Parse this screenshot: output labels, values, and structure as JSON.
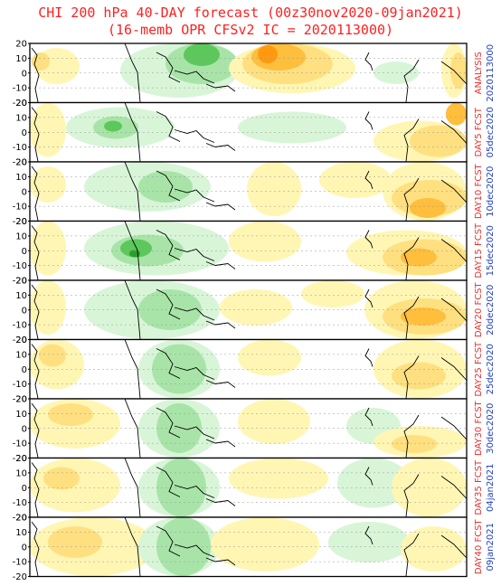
{
  "title_line1": "CHI 200 hPa 40-DAY forecast (00z30nov2020-09jan2021)",
  "title_line2": "(16-memb OPR CFSv2 IC = 2020113000)",
  "colors": {
    "green_light": "#d8f5d8",
    "green_mid": "#a8e4a8",
    "green_dark": "#5cc85c",
    "green_core": "#2aa02a",
    "yellow_light": "#fff6b4",
    "yellow_mid": "#ffe080",
    "orange": "#ffbe3c",
    "orange_dark": "#ff9a10",
    "label_red": "#e8302e",
    "label_blue": "#2040c0",
    "title_red": "#ff2020"
  },
  "chart_data": {
    "type": "heatmap",
    "variable": "CHI 200 hPa",
    "y_ticks": [
      20,
      10,
      0,
      -10,
      -20
    ],
    "ylim": [
      -20,
      20
    ],
    "grid": "dashed horizontal lines every 10 degrees",
    "panels": [
      {
        "label": "ANALYSIS",
        "date": "2020113000"
      },
      {
        "label": "DAY5 FCST",
        "date": "05dec2020"
      },
      {
        "label": "DAY10 FCST",
        "date": "10dec2020"
      },
      {
        "label": "DAY15 FCST",
        "date": "15dec2020"
      },
      {
        "label": "DAY20 FCST",
        "date": "20dec2020"
      },
      {
        "label": "DAY25 FCST",
        "date": "25dec2020"
      },
      {
        "label": "DAY30 FCST",
        "date": "30dec2020"
      },
      {
        "label": "DAY35 FCST",
        "date": "04jan2021"
      },
      {
        "label": "DAY40 FCST",
        "date": "09jan2021"
      }
    ]
  }
}
